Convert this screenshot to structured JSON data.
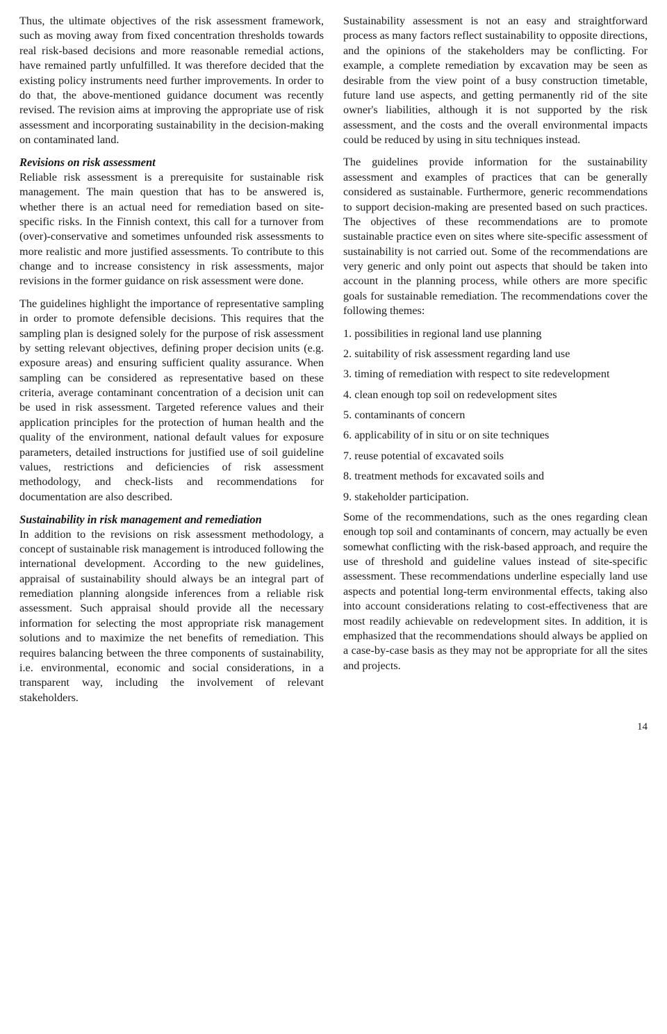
{
  "pageNumber": "14",
  "left": {
    "p1": "Thus, the ultimate objectives of the risk assessment framework, such as moving away from fixed concentration thresholds towards real risk-based decisions and more reasonable remedial actions, have remained partly unfulfilled. It was therefore decided that the existing policy instruments need further improvements. In order to do that, the above-mentioned guidance document was recently revised. The revision aims at improving the appropriate use of risk assessment and incorporating sustainability in the decision-making on contaminated land.",
    "h1": "Revisions on risk assessment",
    "p2": "Reliable risk assessment is a prerequisite for sustainable risk management. The main question that has to be answered is, whether there is an actual need for remediation based on site-specific risks. In the Finnish context, this call for a turnover from (over)-conservative and sometimes unfounded risk assessments to more realistic and more justified assessments. To contribute to this change and to increase consistency in risk assessments, major revisions in the former guidance on risk assessment were done.",
    "p3": "The guidelines highlight the importance of representative sampling in order to promote defensible decisions. This requires that the sampling plan is designed solely for the purpose of risk assessment by setting relevant objectives, defining proper decision units (e.g. exposure areas) and ensuring sufficient quality assurance. When sampling can be considered as representative based on these criteria, average contaminant concentration of a decision unit can be used in risk assessment. Targeted reference values and their application principles for the protection of human health and the quality of the environment, national default values for exposure parameters, detailed instructions for justified use of soil guideline values, restrictions and deficiencies of risk assessment methodology, and check-lists and recommendations for documentation are also described.",
    "h2": "Sustainability in risk management and remediation",
    "p4": "In addition to the revisions on risk assessment methodology, a concept of sustainable risk management is introduced following the international development. According to the new guidelines, appraisal of sustainability should always be an integral part of remediation planning alongside inferences from a reliable risk assessment. Such appraisal should provide all the necessary information for selecting the most appropriate risk management solutions and to maximize the net benefits of remediation. This requires balancing between the three components of sustainability, i.e. environmental, economic and social considerations, in a transparent way, including the involvement of relevant stakeholders."
  },
  "right": {
    "p1": "Sustainability assessment is not an easy and straightforward process as many factors reflect sustainability to opposite directions, and the opinions of the stakeholders may be conflicting. For example, a complete remediation by excavation may be seen as desirable from the view point of a busy construction timetable, future land use aspects, and getting permanently rid of the site owner's liabilities, although it is not supported by the risk assessment, and the costs and the overall environmental impacts could be reduced by using in situ techniques instead.",
    "p2": "The guidelines provide information for the sustainability assessment and examples of practices that can be generally considered as sustainable. Furthermore, generic recommendations to support decision-making are presented based on such practices. The objectives of these recommendations are to promote sustainable practice even on sites where site-specific assessment of sustainability is not carried out. Some of the recommendations are very generic and only point out aspects that should be taken into account in the planning process, while others are more specific goals for sustainable remediation. The recommendations cover the following themes:",
    "items": [
      "1. possibilities in regional land use planning",
      "2. suitability of risk assessment regarding land use",
      "3. timing of remediation with respect to site redevelopment",
      "4. clean enough top soil on redevelopment sites",
      "5. contaminants of concern",
      "6. applicability of in situ or on site techniques",
      "7. reuse potential of excavated soils",
      "8. treatment methods for excavated soils and",
      "9. stakeholder participation."
    ],
    "p3": "Some of the recommendations, such as the ones regarding clean enough top soil and contaminants of concern, may actually be even somewhat conflicting with the risk-based approach, and require the use of threshold and guideline values instead of site-specific assessment. These recommendations underline especially land use aspects and potential long-term environmental effects, taking also into account considerations relating to cost-effectiveness that are most readily achievable on redevelopment sites. In addition, it is emphasized that the recommendations should always be applied on a case-by-case basis as they may not be appropriate for all the sites and projects."
  }
}
